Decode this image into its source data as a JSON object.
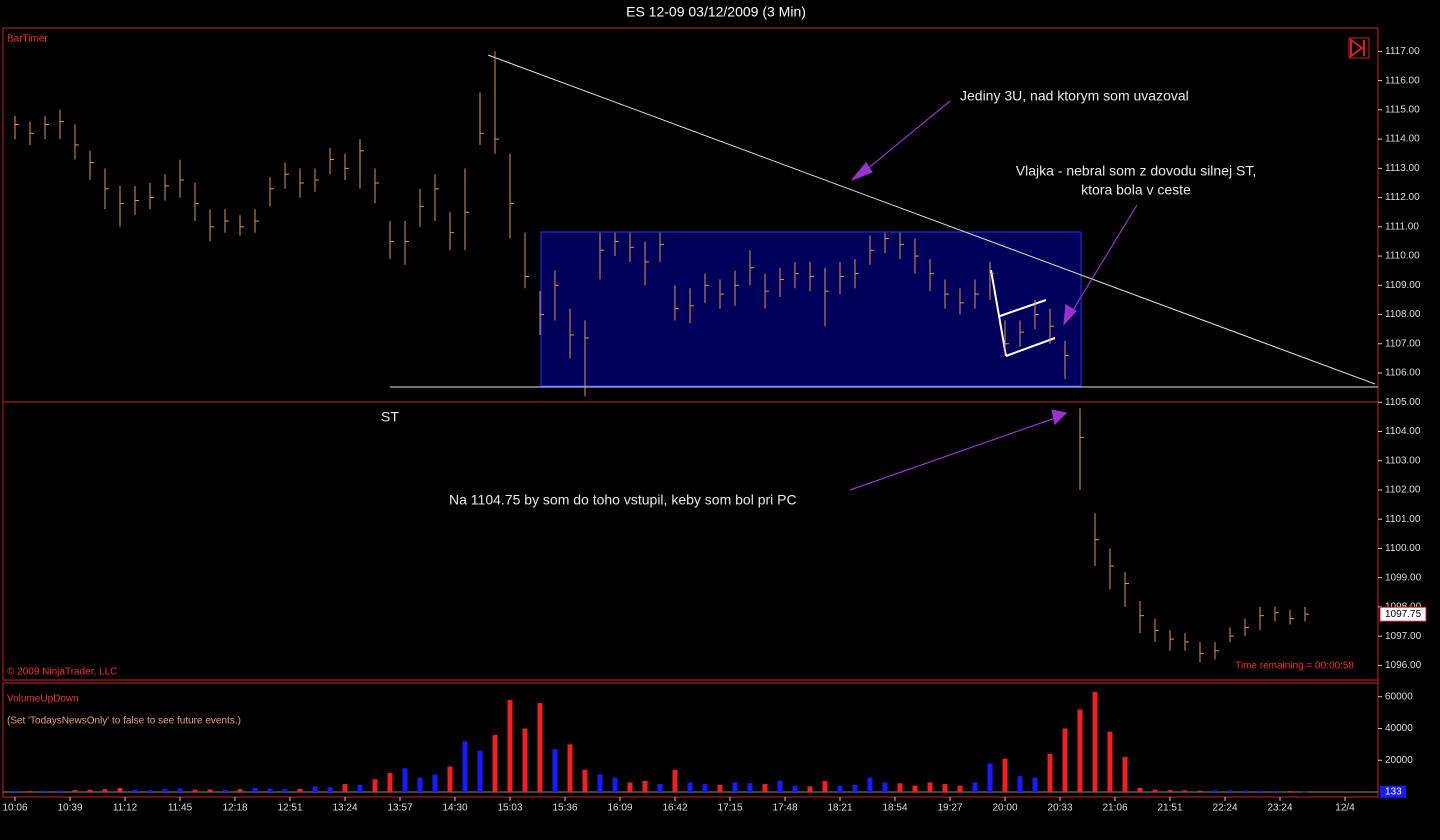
{
  "chart_data": [
    {
      "type": "ohlc",
      "title": "ES 12-09  03/12/2009 (3 Min)",
      "indicator": "BarTimer",
      "copyright": "© 2009 NinjaTrader, LLC",
      "status": "Time remaining = 00:00:58",
      "level_label": "ST",
      "annotations": [
        "Jediny 3U, nad ktorym som uvazoval",
        "Vlajka - nebral som z dovodu silnej ST,",
        "ktora bola v ceste",
        "Na 1104.75 by som do toho vstupil, keby som bol pri PC"
      ],
      "color": "#d9955a",
      "x": [
        0,
        3,
        6,
        9,
        12,
        15,
        18,
        21,
        24,
        27,
        30,
        33,
        36,
        39,
        42,
        45,
        48,
        51,
        54,
        57,
        60,
        63,
        66,
        69,
        72,
        75,
        78,
        81,
        84,
        87,
        90,
        93,
        96,
        99,
        102,
        105,
        108,
        111,
        114,
        117,
        120,
        123,
        126,
        129,
        132,
        135,
        138,
        141,
        144,
        147,
        150,
        153,
        156,
        159,
        162,
        165,
        168,
        171,
        174,
        177,
        180,
        183,
        186,
        189,
        192,
        195,
        198,
        201,
        204,
        207,
        210,
        213,
        216,
        219,
        222,
        225,
        228,
        231,
        234,
        237,
        240,
        243,
        246,
        249,
        252,
        255,
        258
      ],
      "high": [
        1114.8,
        1114.6,
        1114.8,
        1115.0,
        1114.5,
        1113.6,
        1113.0,
        1112.4,
        1112.4,
        1112.5,
        1112.8,
        1113.3,
        1112.5,
        1111.6,
        1111.6,
        1111.4,
        1111.6,
        1112.7,
        1113.2,
        1113.0,
        1113.0,
        1113.7,
        1113.5,
        1114.0,
        1113.0,
        1111.2,
        1111.2,
        1112.3,
        1112.8,
        1111.5,
        1113.0,
        1115.6,
        1117.0,
        1113.5,
        1110.8,
        1108.8,
        1109.5,
        1108.2,
        1107.8,
        1110.8,
        1110.8,
        1110.8,
        1110.5,
        1110.8,
        1109.0,
        1108.9,
        1109.4,
        1109.2,
        1109.5,
        1110.2,
        1109.4,
        1109.6,
        1109.8,
        1109.8,
        1109.6,
        1109.8,
        1109.9,
        1110.7,
        1110.8,
        1110.8,
        1110.6,
        1109.9,
        1109.2,
        1108.9,
        1109.2,
        1109.8,
        1107.8,
        1107.8,
        1108.5,
        1108.2,
        1107.1,
        1104.8,
        1101.2,
        1100.0,
        1099.2,
        1098.2,
        1097.6,
        1097.2,
        1097.1,
        1096.8,
        1096.8,
        1097.3,
        1097.6,
        1098.0,
        1098.0,
        1097.9,
        1098.0
      ],
      "low": [
        1114.0,
        1113.8,
        1114.0,
        1114.0,
        1113.3,
        1112.6,
        1111.6,
        1111.0,
        1111.4,
        1111.6,
        1111.9,
        1112.0,
        1111.2,
        1110.5,
        1110.8,
        1110.7,
        1110.8,
        1111.7,
        1112.3,
        1112.0,
        1112.2,
        1112.8,
        1112.6,
        1112.3,
        1111.8,
        1109.9,
        1109.7,
        1111.0,
        1111.2,
        1110.2,
        1110.2,
        1113.8,
        1113.5,
        1110.6,
        1108.9,
        1107.3,
        1107.8,
        1106.5,
        1105.2,
        1109.2,
        1110.0,
        1109.8,
        1109.0,
        1109.8,
        1107.8,
        1107.7,
        1108.4,
        1108.2,
        1108.3,
        1109.0,
        1108.2,
        1108.6,
        1108.9,
        1108.8,
        1107.6,
        1108.7,
        1108.9,
        1109.7,
        1110.1,
        1109.9,
        1109.4,
        1108.8,
        1108.2,
        1108.0,
        1108.2,
        1108.5,
        1106.6,
        1106.9,
        1107.5,
        1107.0,
        1105.8,
        1102.0,
        1099.4,
        1098.6,
        1098.0,
        1097.1,
        1096.8,
        1096.5,
        1096.5,
        1096.1,
        1096.2,
        1096.8,
        1097.0,
        1097.2,
        1097.5,
        1097.4,
        1097.5
      ],
      "close": [
        1114.5,
        1114.2,
        1114.5,
        1114.6,
        1113.8,
        1113.2,
        1112.3,
        1111.8,
        1111.9,
        1112.0,
        1112.4,
        1112.6,
        1111.8,
        1111.0,
        1111.2,
        1111.0,
        1111.2,
        1112.3,
        1112.8,
        1112.5,
        1112.6,
        1113.3,
        1113.0,
        1113.6,
        1112.5,
        1110.5,
        1110.5,
        1111.7,
        1112.3,
        1110.8,
        1111.5,
        1114.2,
        1114.0,
        1111.8,
        1109.3,
        1108.0,
        1109.0,
        1107.3,
        1107.2,
        1110.2,
        1110.5,
        1110.3,
        1109.8,
        1110.4,
        1108.2,
        1108.3,
        1109.0,
        1108.7,
        1109.0,
        1109.6,
        1108.8,
        1109.2,
        1109.4,
        1109.3,
        1108.8,
        1109.3,
        1109.4,
        1110.2,
        1110.6,
        1110.4,
        1110.0,
        1109.4,
        1108.7,
        1108.4,
        1108.7,
        1109.4,
        1107.0,
        1107.4,
        1108.0,
        1107.6,
        1106.6,
        1103.8,
        1100.3,
        1099.4,
        1098.8,
        1097.7,
        1097.2,
        1096.9,
        1096.8,
        1096.4,
        1096.5,
        1097.0,
        1097.3,
        1097.7,
        1097.8,
        1097.6,
        1097.75
      ],
      "xlim": [
        -2,
        273
      ],
      "xticks": [
        {
          "value": 0,
          "label": "10:06"
        },
        {
          "value": 11,
          "label": "10:39"
        },
        {
          "value": 22,
          "label": "11:12"
        },
        {
          "value": 33,
          "label": "11:45"
        },
        {
          "value": 44,
          "label": "12:18"
        },
        {
          "value": 55,
          "label": "12:51"
        },
        {
          "value": 66,
          "label": "13:24"
        },
        {
          "value": 77,
          "label": "13:57"
        },
        {
          "value": 88,
          "label": "14:30"
        },
        {
          "value": 99,
          "label": "15:03"
        },
        {
          "value": 110,
          "label": "15:36"
        },
        {
          "value": 121,
          "label": "16:09"
        },
        {
          "value": 132,
          "label": "16:42"
        },
        {
          "value": 143,
          "label": "17:15"
        },
        {
          "value": 154,
          "label": "17:48"
        },
        {
          "value": 165,
          "label": "18:21"
        },
        {
          "value": 176,
          "label": "18:54"
        },
        {
          "value": 187,
          "label": "19:27"
        },
        {
          "value": 198,
          "label": "20:00"
        },
        {
          "value": 209,
          "label": "20:33"
        },
        {
          "value": 220,
          "label": "21:06"
        },
        {
          "value": 231,
          "label": "21:51"
        },
        {
          "value": 242,
          "label": "22:24"
        },
        {
          "value": 253,
          "label": "23:24"
        },
        {
          "value": 266,
          "label": "12/4"
        }
      ],
      "ylim": [
        1095.5,
        1117.8
      ],
      "yticks": [
        {
          "value": 1096,
          "label": "1096.00"
        },
        {
          "value": 1097,
          "label": "1097.00"
        },
        {
          "value": 1098,
          "label": "1098.00"
        },
        {
          "value": 1099,
          "label": "1099.00"
        },
        {
          "value": 1100,
          "label": "1100.00"
        },
        {
          "value": 1101,
          "label": "1101.00"
        },
        {
          "value": 1102,
          "label": "1102.00"
        },
        {
          "value": 1103,
          "label": "1103.00"
        },
        {
          "value": 1104,
          "label": "1104.00"
        },
        {
          "value": 1105,
          "label": "1105.00"
        },
        {
          "value": 1106,
          "label": "1106.00"
        },
        {
          "value": 1107,
          "label": "1107.00"
        },
        {
          "value": 1108,
          "label": "1108.00"
        },
        {
          "value": 1109,
          "label": "1109.00"
        },
        {
          "value": 1110,
          "label": "1110.00"
        },
        {
          "value": 1111,
          "label": "1111.00"
        },
        {
          "value": 1112,
          "label": "1112.00"
        },
        {
          "value": 1113,
          "label": "1113.00"
        },
        {
          "value": 1114,
          "label": "1114.00"
        },
        {
          "value": 1115,
          "label": "1115.00"
        },
        {
          "value": 1116,
          "label": "1116.00"
        },
        {
          "value": 1117,
          "label": "1117.00"
        }
      ]
    },
    {
      "type": "bar",
      "title": "VolumeUpDown",
      "note": "(Set 'TodaysNewsOnly' to false to see future events.)",
      "up_color": "#1a1aff",
      "down_color": "#ee2222",
      "values": [
        800,
        600,
        700,
        900,
        1200,
        1500,
        1800,
        2500,
        1500,
        1200,
        1800,
        2200,
        1500,
        1600,
        1400,
        1800,
        2500,
        2200,
        1800,
        2000,
        3500,
        3000,
        5000,
        4500,
        8000,
        12000,
        15000,
        9000,
        11000,
        16000,
        32000,
        26000,
        36000,
        58000,
        40000,
        56000,
        27000,
        30000,
        14000,
        11000,
        9000,
        6000,
        7000,
        5000,
        14000,
        6000,
        5000,
        4500,
        6000,
        5500,
        5000,
        7000,
        4000,
        3500,
        7000,
        4000,
        4500,
        9000,
        6000,
        5500,
        4000,
        6000,
        5000,
        4000,
        6000,
        18000,
        21000,
        10000,
        9000,
        24000,
        40000,
        52000,
        63000,
        38000,
        22000,
        2500,
        1500,
        1200,
        1000,
        900,
        1100,
        1000,
        900,
        800,
        700,
        600,
        133
      ],
      "ylim": [
        0,
        68000
      ],
      "yticks": [
        20000,
        40000,
        60000
      ]
    }
  ]
}
